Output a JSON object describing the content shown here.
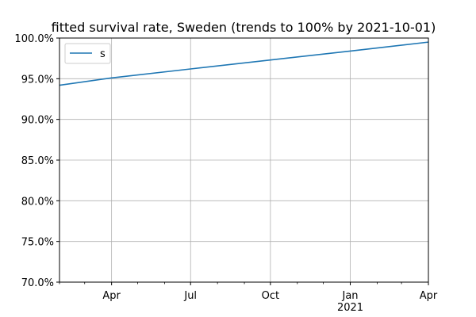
{
  "chart_data": {
    "type": "line",
    "title": "fitted survival rate, Sweden (trends to 100% by 2021-10-01)",
    "xlabel": "",
    "ylabel": "",
    "x_range": [
      "2020-02-01",
      "2021-04-01"
    ],
    "ylim": [
      70.0,
      100.0
    ],
    "y_ticks": [
      70.0,
      75.0,
      80.0,
      85.0,
      90.0,
      95.0,
      100.0
    ],
    "y_tick_labels": [
      "70.0%",
      "75.0%",
      "80.0%",
      "85.0%",
      "90.0%",
      "95.0%",
      "100.0%"
    ],
    "x_ticks": [
      {
        "date": "2020-04-01",
        "label": "Apr",
        "sublabel": ""
      },
      {
        "date": "2020-07-01",
        "label": "Jul",
        "sublabel": ""
      },
      {
        "date": "2020-10-01",
        "label": "Oct",
        "sublabel": ""
      },
      {
        "date": "2021-01-01",
        "label": "Jan",
        "sublabel": "2021"
      },
      {
        "date": "2021-04-01",
        "label": "Apr",
        "sublabel": ""
      }
    ],
    "minor_x_ticks": [
      "2020-02-01",
      "2020-03-01",
      "2020-05-01",
      "2020-06-01",
      "2020-08-01",
      "2020-09-01",
      "2020-11-01",
      "2020-12-01",
      "2021-02-01",
      "2021-03-01"
    ],
    "grid": true,
    "legend": {
      "placement": "top-left"
    },
    "series": [
      {
        "name": "s",
        "color": "#1f77b4",
        "points": [
          {
            "x": "2020-02-01",
            "y": 94.2
          },
          {
            "x": "2020-04-01",
            "y": 95.1
          },
          {
            "x": "2020-07-01",
            "y": 96.2
          },
          {
            "x": "2020-10-01",
            "y": 97.3
          },
          {
            "x": "2021-01-01",
            "y": 98.4
          },
          {
            "x": "2021-04-01",
            "y": 99.5
          }
        ]
      }
    ]
  }
}
